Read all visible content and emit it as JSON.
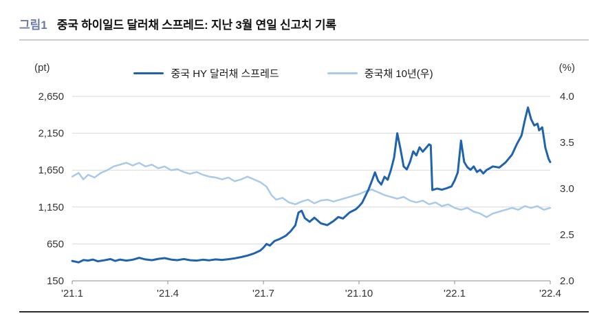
{
  "header": {
    "tag": "그림1",
    "title": "중국 하이일드 달러채 스프레드: 지난 3월 연일 신고치 기록"
  },
  "chart_data": {
    "type": "line",
    "title": "중국 하이일드 달러채 스프레드: 지난 3월 연일 신고치 기록",
    "legend_position": "top",
    "grid": true,
    "grid_color": "#d9d9d9",
    "axis_line_color": "#8c8c8c",
    "left_axis": {
      "unit": "(pt)",
      "min": 150,
      "max": 2650,
      "ticks": [
        150,
        650,
        1150,
        1650,
        2150,
        2650
      ],
      "tick_labels": [
        "150",
        "650",
        "1,150",
        "1,650",
        "2,150",
        "2,650"
      ]
    },
    "right_axis": {
      "unit": "(%)",
      "min": 2.0,
      "max": 4.0,
      "ticks": [
        2.0,
        2.5,
        3.0,
        3.5,
        4.0
      ],
      "tick_labels": [
        "2.0",
        "2.5",
        "3.0",
        "3.5",
        "4.0"
      ]
    },
    "x_axis": {
      "min": 0,
      "max": 15,
      "ticks": [
        0,
        3,
        6,
        9,
        12,
        15
      ],
      "tick_labels": [
        "'21.1",
        "'21.4",
        "'21.7",
        "'21.10",
        "'22.1",
        "'22.4"
      ]
    },
    "series": [
      {
        "name": "중국 HY 달러채 스프레드",
        "axis": "left",
        "color": "#1f62ae",
        "width": 3,
        "points": [
          [
            0,
            420
          ],
          [
            0.2,
            400
          ],
          [
            0.35,
            432
          ],
          [
            0.5,
            425
          ],
          [
            0.65,
            438
          ],
          [
            0.8,
            415
          ],
          [
            1,
            428
          ],
          [
            1.2,
            445
          ],
          [
            1.35,
            420
          ],
          [
            1.5,
            438
          ],
          [
            1.7,
            424
          ],
          [
            1.9,
            436
          ],
          [
            2.1,
            462
          ],
          [
            2.3,
            440
          ],
          [
            2.5,
            430
          ],
          [
            2.7,
            448
          ],
          [
            2.9,
            458
          ],
          [
            3.1,
            438
          ],
          [
            3.3,
            430
          ],
          [
            3.5,
            446
          ],
          [
            3.7,
            430
          ],
          [
            3.9,
            424
          ],
          [
            4.1,
            436
          ],
          [
            4.3,
            428
          ],
          [
            4.5,
            440
          ],
          [
            4.7,
            434
          ],
          [
            4.9,
            443
          ],
          [
            5.1,
            455
          ],
          [
            5.3,
            472
          ],
          [
            5.5,
            492
          ],
          [
            5.7,
            520
          ],
          [
            5.9,
            560
          ],
          [
            6,
            600
          ],
          [
            6.1,
            650
          ],
          [
            6.2,
            628
          ],
          [
            6.35,
            690
          ],
          [
            6.5,
            715
          ],
          [
            6.7,
            760
          ],
          [
            6.85,
            820
          ],
          [
            7,
            900
          ],
          [
            7.1,
            1075
          ],
          [
            7.2,
            1100
          ],
          [
            7.3,
            1000
          ],
          [
            7.45,
            950
          ],
          [
            7.6,
            1005
          ],
          [
            7.8,
            930
          ],
          [
            8,
            905
          ],
          [
            8.2,
            960
          ],
          [
            8.35,
            1015
          ],
          [
            8.5,
            995
          ],
          [
            8.7,
            1075
          ],
          [
            8.9,
            1120
          ],
          [
            9,
            1160
          ],
          [
            9.1,
            1210
          ],
          [
            9.2,
            1300
          ],
          [
            9.3,
            1390
          ],
          [
            9.4,
            1500
          ],
          [
            9.5,
            1620
          ],
          [
            9.6,
            1505
          ],
          [
            9.7,
            1455
          ],
          [
            9.8,
            1560
          ],
          [
            9.9,
            1520
          ],
          [
            10,
            1650
          ],
          [
            10.1,
            1820
          ],
          [
            10.2,
            2150
          ],
          [
            10.3,
            1940
          ],
          [
            10.4,
            1700
          ],
          [
            10.5,
            1660
          ],
          [
            10.6,
            1760
          ],
          [
            10.7,
            1905
          ],
          [
            10.8,
            1850
          ],
          [
            10.9,
            1960
          ],
          [
            11,
            1900
          ],
          [
            11.1,
            1950
          ],
          [
            11.2,
            2000
          ],
          [
            11.25,
            1985
          ],
          [
            11.3,
            1380
          ],
          [
            11.45,
            1400
          ],
          [
            11.6,
            1385
          ],
          [
            11.75,
            1405
          ],
          [
            11.9,
            1430
          ],
          [
            12,
            1510
          ],
          [
            12.1,
            1620
          ],
          [
            12.2,
            2050
          ],
          [
            12.3,
            1760
          ],
          [
            12.4,
            1690
          ],
          [
            12.5,
            1655
          ],
          [
            12.6,
            1700
          ],
          [
            12.7,
            1625
          ],
          [
            12.8,
            1655
          ],
          [
            12.9,
            1605
          ],
          [
            13,
            1650
          ],
          [
            13.2,
            1700
          ],
          [
            13.4,
            1685
          ],
          [
            13.6,
            1755
          ],
          [
            13.8,
            1860
          ],
          [
            13.95,
            2000
          ],
          [
            14.1,
            2120
          ],
          [
            14.2,
            2320
          ],
          [
            14.3,
            2500
          ],
          [
            14.4,
            2340
          ],
          [
            14.5,
            2255
          ],
          [
            14.6,
            2280
          ],
          [
            14.65,
            2190
          ],
          [
            14.75,
            2230
          ],
          [
            14.85,
            1950
          ],
          [
            14.95,
            1800
          ],
          [
            15,
            1760
          ]
        ]
      },
      {
        "name": "중국채 10년(우)",
        "axis": "right",
        "color": "#a8c9ea",
        "width": 2.5,
        "points": [
          [
            0,
            3.13
          ],
          [
            0.2,
            3.17
          ],
          [
            0.35,
            3.1
          ],
          [
            0.5,
            3.15
          ],
          [
            0.7,
            3.12
          ],
          [
            0.9,
            3.17
          ],
          [
            1.1,
            3.2
          ],
          [
            1.3,
            3.24
          ],
          [
            1.5,
            3.26
          ],
          [
            1.7,
            3.28
          ],
          [
            1.9,
            3.25
          ],
          [
            2.1,
            3.28
          ],
          [
            2.3,
            3.24
          ],
          [
            2.5,
            3.26
          ],
          [
            2.7,
            3.22
          ],
          [
            2.9,
            3.24
          ],
          [
            3.1,
            3.2
          ],
          [
            3.3,
            3.21
          ],
          [
            3.5,
            3.18
          ],
          [
            3.7,
            3.16
          ],
          [
            3.9,
            3.18
          ],
          [
            4.1,
            3.15
          ],
          [
            4.3,
            3.13
          ],
          [
            4.5,
            3.12
          ],
          [
            4.7,
            3.1
          ],
          [
            4.9,
            3.12
          ],
          [
            5.1,
            3.08
          ],
          [
            5.3,
            3.1
          ],
          [
            5.5,
            3.13
          ],
          [
            5.7,
            3.1
          ],
          [
            5.9,
            3.07
          ],
          [
            6.1,
            3.02
          ],
          [
            6.25,
            2.93
          ],
          [
            6.4,
            2.88
          ],
          [
            6.6,
            2.9
          ],
          [
            6.8,
            2.85
          ],
          [
            7,
            2.83
          ],
          [
            7.2,
            2.86
          ],
          [
            7.4,
            2.88
          ],
          [
            7.6,
            2.84
          ],
          [
            7.8,
            2.87
          ],
          [
            8,
            2.88
          ],
          [
            8.2,
            2.86
          ],
          [
            8.4,
            2.88
          ],
          [
            8.6,
            2.9
          ],
          [
            8.8,
            2.92
          ],
          [
            9,
            2.94
          ],
          [
            9.2,
            2.97
          ],
          [
            9.4,
            2.99
          ],
          [
            9.6,
            2.96
          ],
          [
            9.8,
            2.93
          ],
          [
            10,
            2.91
          ],
          [
            10.2,
            2.89
          ],
          [
            10.4,
            2.91
          ],
          [
            10.6,
            2.87
          ],
          [
            10.8,
            2.85
          ],
          [
            11,
            2.87
          ],
          [
            11.2,
            2.83
          ],
          [
            11.4,
            2.85
          ],
          [
            11.6,
            2.81
          ],
          [
            11.8,
            2.83
          ],
          [
            12,
            2.79
          ],
          [
            12.2,
            2.77
          ],
          [
            12.4,
            2.79
          ],
          [
            12.6,
            2.75
          ],
          [
            12.8,
            2.73
          ],
          [
            13,
            2.69
          ],
          [
            13.2,
            2.73
          ],
          [
            13.4,
            2.75
          ],
          [
            13.6,
            2.77
          ],
          [
            13.8,
            2.79
          ],
          [
            14,
            2.77
          ],
          [
            14.2,
            2.81
          ],
          [
            14.4,
            2.79
          ],
          [
            14.6,
            2.81
          ],
          [
            14.8,
            2.77
          ],
          [
            15,
            2.79
          ]
        ]
      }
    ]
  }
}
